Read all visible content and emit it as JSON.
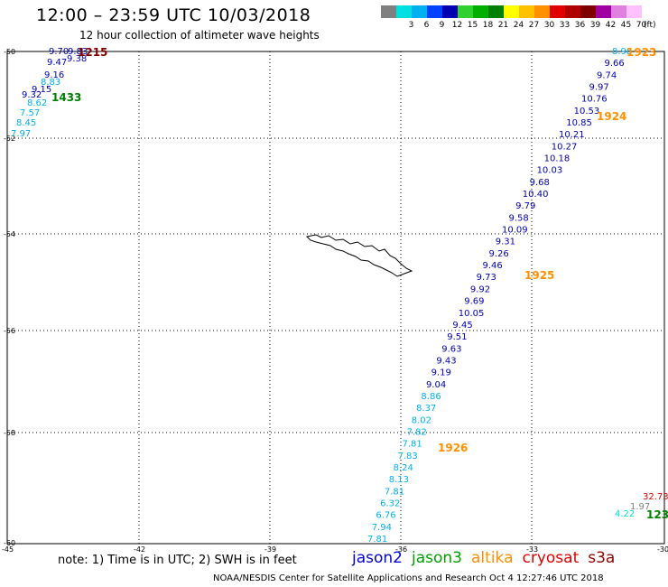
{
  "header": {
    "title": "12:00 – 23:59 UTC 10/03/2018",
    "subtitle": "12 hour collection of altimeter wave heights"
  },
  "colorbar": {
    "swatches": [
      {
        "color": "#808080",
        "label": ""
      },
      {
        "color": "#00e0e0",
        "label": "3"
      },
      {
        "color": "#00b0f0",
        "label": "6"
      },
      {
        "color": "#0040ff",
        "label": "9"
      },
      {
        "color": "#0000b0",
        "label": "12"
      },
      {
        "color": "#30d030",
        "label": "15"
      },
      {
        "color": "#00b000",
        "label": "18"
      },
      {
        "color": "#008000",
        "label": "21"
      },
      {
        "color": "#ffff00",
        "label": "24"
      },
      {
        "color": "#ffc000",
        "label": "27"
      },
      {
        "color": "#ff9000",
        "label": "30"
      },
      {
        "color": "#e00000",
        "label": "33"
      },
      {
        "color": "#b00000",
        "label": "36"
      },
      {
        "color": "#800000",
        "label": "39"
      },
      {
        "color": "#a000a0",
        "label": "42"
      },
      {
        "color": "#e080e0",
        "label": "45"
      },
      {
        "color": "#ffc0ff",
        "label": "70"
      }
    ],
    "unit": "(ft)"
  },
  "map": {
    "lat_range": [
      -60,
      -50
    ],
    "lon_range": [
      -45,
      -30
    ],
    "lat_ticks": [
      "-50",
      "-52",
      "-54",
      "-56",
      "-58",
      "-60"
    ],
    "lon_ticks": [
      "-45",
      "-42",
      "-39",
      "-36",
      "-33",
      "-30"
    ],
    "tracks": [
      {
        "name": "jason2",
        "points": [
          [
            "8.98",
            "#00b0f0"
          ],
          [
            "9.66",
            "#0000b0"
          ],
          [
            "9.74",
            "#0000b0"
          ],
          [
            "9.97",
            "#0000b0"
          ],
          [
            "10.76",
            "#0000b0"
          ],
          [
            "10.53",
            "#0000b0"
          ],
          [
            "10.85",
            "#0000b0"
          ],
          [
            "10.21",
            "#0000b0"
          ],
          [
            "10.27",
            "#0000b0"
          ],
          [
            "10.18",
            "#0000b0"
          ],
          [
            "10.03",
            "#0000b0"
          ],
          [
            "9.68",
            "#0000b0"
          ],
          [
            "10.40",
            "#0000b0"
          ],
          [
            "9.79",
            "#0000b0"
          ],
          [
            "9.58",
            "#0000b0"
          ],
          [
            "10.09",
            "#0000b0"
          ],
          [
            "9.31",
            "#0000b0"
          ],
          [
            "9.26",
            "#0000b0"
          ],
          [
            "9.46",
            "#0000b0"
          ],
          [
            "9.73",
            "#0000b0"
          ],
          [
            "9.92",
            "#0000b0"
          ],
          [
            "9.69",
            "#0000b0"
          ],
          [
            "10.05",
            "#0000b0"
          ],
          [
            "9.45",
            "#0000b0"
          ],
          [
            "9.51",
            "#0000b0"
          ],
          [
            "9.63",
            "#0000b0"
          ],
          [
            "9.43",
            "#0000b0"
          ],
          [
            "9.19",
            "#0000b0"
          ],
          [
            "9.04",
            "#0000b0"
          ],
          [
            "8.86",
            "#00b0f0"
          ],
          [
            "8.37",
            "#00b0f0"
          ],
          [
            "8.02",
            "#00b0f0"
          ],
          [
            "7.82",
            "#00b0f0"
          ],
          [
            "7.81",
            "#00b0f0"
          ],
          [
            "7.83",
            "#00b0f0"
          ],
          [
            "8.24",
            "#00b0f0"
          ],
          [
            "8.13",
            "#00b0f0"
          ],
          [
            "7.81",
            "#00b0f0"
          ],
          [
            "6.32",
            "#00b0f0"
          ],
          [
            "6.76",
            "#00b0f0"
          ],
          [
            "7.94",
            "#00b0f0"
          ],
          [
            "7.81",
            "#00b0f0"
          ]
        ]
      },
      {
        "name": "northwest",
        "points": [
          [
            "9.70",
            "#0000b0"
          ],
          [
            "9.83",
            "#0000b0"
          ],
          [
            "9.38",
            "#0000b0"
          ],
          [
            "9.47",
            "#0000b0"
          ],
          [
            "9.16",
            "#0000b0"
          ],
          [
            "8.83",
            "#00b0f0"
          ],
          [
            "9.15",
            "#0000b0"
          ],
          [
            "9.32",
            "#0000b0"
          ],
          [
            "8.62",
            "#00b0f0"
          ],
          [
            "7.57",
            "#00b0f0"
          ],
          [
            "8.45",
            "#00b0f0"
          ],
          [
            "7.97",
            "#00b0f0"
          ]
        ]
      },
      {
        "name": "southeast",
        "points": [
          [
            "32.73",
            "#e00000"
          ],
          [
            "1.97",
            "#808080"
          ],
          [
            "4.22",
            "#00e0e0"
          ]
        ]
      }
    ],
    "time_labels": [
      {
        "text": "1923",
        "color": "#ff9000"
      },
      {
        "text": "1924",
        "color": "#ff9000"
      },
      {
        "text": "1925",
        "color": "#ff9000"
      },
      {
        "text": "1926",
        "color": "#ff9000"
      },
      {
        "text": "1215",
        "color": "#800000"
      },
      {
        "text": "1433",
        "color": "#008000"
      },
      {
        "text": "123",
        "color": "#008000"
      }
    ]
  },
  "footer": {
    "note": "note: 1) Time is in UTC; 2) SWH is in feet",
    "satellites": [
      {
        "name": "jason2",
        "color": "#0000d0"
      },
      {
        "name": "jason3",
        "color": "#00a000"
      },
      {
        "name": "altika",
        "color": "#ff9000"
      },
      {
        "name": "cryosat",
        "color": "#e00000"
      },
      {
        "name": "s3a",
        "color": "#900000"
      }
    ],
    "credit": "NOAA/NESDIS Center for Satellite Applications and Research   Oct  4 12:27:46 UTC 2018"
  }
}
